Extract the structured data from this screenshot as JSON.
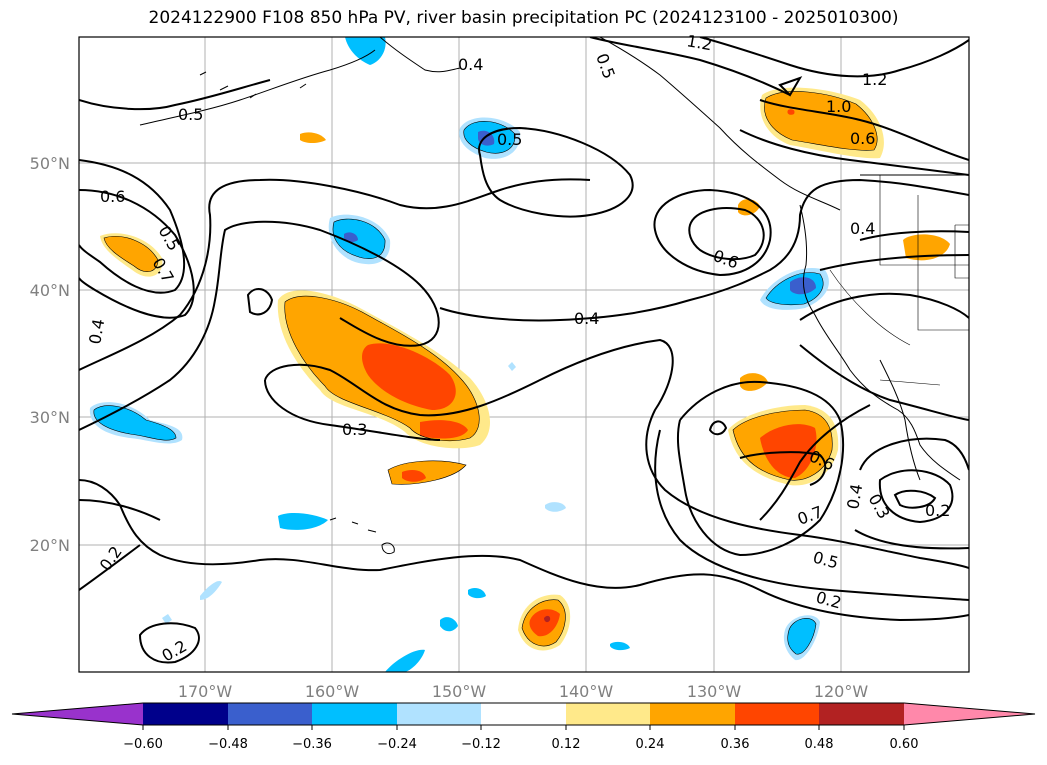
{
  "title": "2024122900 F108 850 hPa PV, river basin precipitation PC (2024123100 - 2025010300)",
  "map": {
    "lat_labels": [
      "50°N",
      "40°N",
      "30°N",
      "20°N"
    ],
    "lon_labels": [
      "170°W",
      "160°W",
      "150°W",
      "140°W",
      "130°W",
      "120°W"
    ],
    "contour_labels": [
      "0.5",
      "0.4",
      "0.5",
      "1.2",
      "1.0",
      "0.6",
      "0.6",
      "0.5",
      "0.7",
      "0.4",
      "0.6",
      "0.4",
      "0.4",
      "0.3",
      "0.6",
      "0.7",
      "0.4",
      "0.3",
      "0.2",
      "0.5",
      "0.2",
      "0.2",
      "0.2",
      "1.2",
      "0.5"
    ]
  },
  "colorbar": {
    "ticks": [
      "−0.60",
      "−0.48",
      "−0.36",
      "−0.24",
      "−0.12",
      "0.12",
      "0.24",
      "0.36",
      "0.48",
      "0.60"
    ],
    "colors": {
      "below": "#9932cc",
      "neg_060": "#00008b",
      "neg_048": "#3a5fcd",
      "neg_036": "#00bfff",
      "neg_024": "#b0e2ff",
      "neutral": "#ffffff",
      "pos_012": "#ffe98a",
      "pos_024": "#ffa500",
      "pos_036": "#ff4500",
      "pos_048": "#b22222",
      "above": "#ff88aa"
    }
  }
}
